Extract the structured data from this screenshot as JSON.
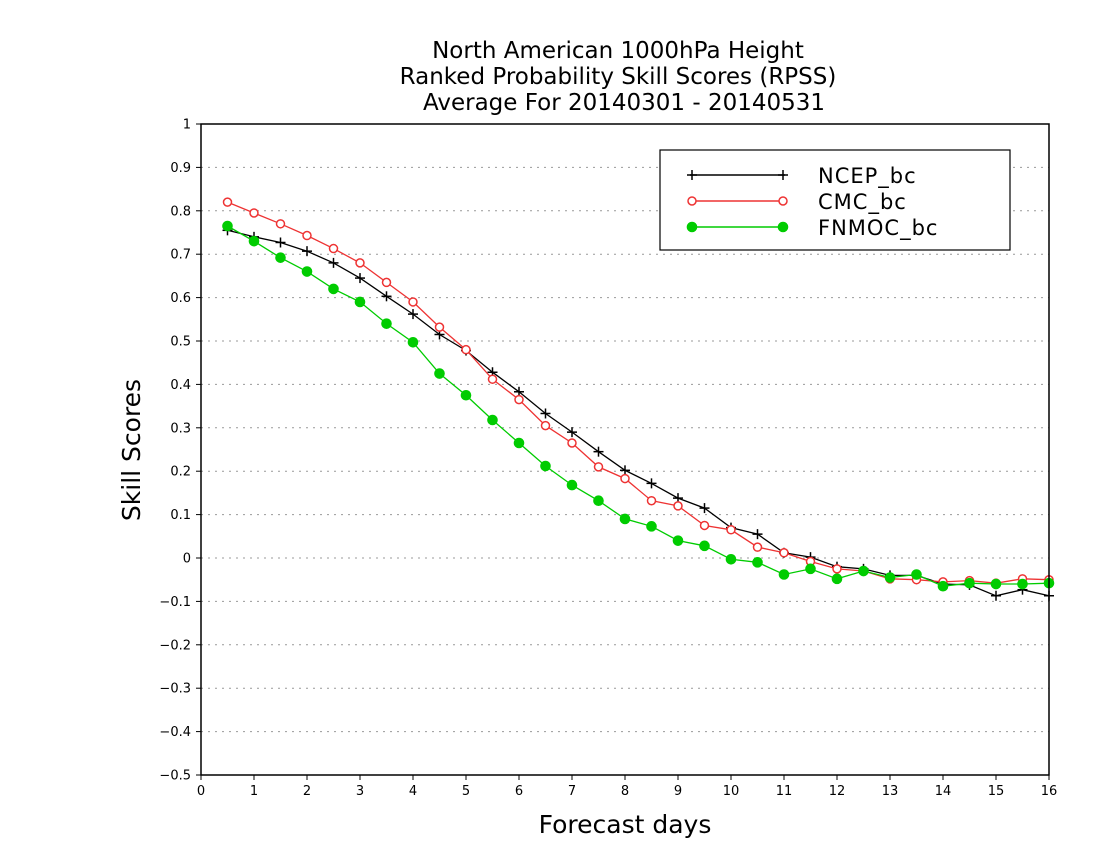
{
  "chart_data": {
    "type": "line",
    "title_lines": [
      "North American 1000hPa Height",
      "Ranked Probability Skill Scores (RPSS)",
      "Average For 20140301 - 20140531"
    ],
    "xlabel": "Forecast days",
    "ylabel": "Skill Scores",
    "xlim": [
      0,
      16
    ],
    "ylim": [
      -0.5,
      1
    ],
    "xticks": [
      "0",
      "1",
      "2",
      "3",
      "4",
      "5",
      "6",
      "7",
      "8",
      "9",
      "10",
      "11",
      "12",
      "13",
      "14",
      "15",
      "16"
    ],
    "yticks": [
      "1",
      "0.9",
      "0.8",
      "0.7",
      "0.6",
      "0.5",
      "0.4",
      "0.3",
      "0.2",
      "0.1",
      "0",
      "−0.1",
      "−0.2",
      "−0.3",
      "−0.4",
      "−0.5"
    ],
    "grid": "horizontal dotted",
    "legend_position": "top-right",
    "x": [
      0.5,
      1,
      1.5,
      2,
      2.5,
      3,
      3.5,
      4,
      4.5,
      5,
      5.5,
      6,
      6.5,
      7,
      7.5,
      8,
      8.5,
      9,
      9.5,
      10,
      10.5,
      11,
      11.5,
      12,
      12.5,
      13,
      13.5,
      14,
      14.5,
      15,
      15.5,
      16
    ],
    "series": [
      {
        "name": "NCEP_bc",
        "color": "#000000",
        "marker": "plus",
        "values": [
          0.755,
          0.74,
          0.727,
          0.707,
          0.68,
          0.645,
          0.603,
          0.562,
          0.515,
          0.478,
          0.428,
          0.383,
          0.333,
          0.29,
          0.245,
          0.202,
          0.172,
          0.138,
          0.115,
          0.07,
          0.055,
          0.012,
          0.002,
          -0.02,
          -0.025,
          -0.04,
          -0.04,
          -0.06,
          -0.062,
          -0.087,
          -0.073,
          -0.087
        ]
      },
      {
        "name": "CMC_bc",
        "color": "#ee3333",
        "marker": "open-circle",
        "values": [
          0.82,
          0.795,
          0.77,
          0.743,
          0.713,
          0.68,
          0.635,
          0.59,
          0.532,
          0.48,
          0.412,
          0.365,
          0.305,
          0.265,
          0.21,
          0.183,
          0.132,
          0.12,
          0.075,
          0.065,
          0.025,
          0.012,
          -0.008,
          -0.025,
          -0.03,
          -0.048,
          -0.05,
          -0.055,
          -0.052,
          -0.058,
          -0.048,
          -0.05
        ]
      },
      {
        "name": "FNMOC_bc",
        "color": "#00cc00",
        "marker": "filled-circle",
        "values": [
          0.765,
          0.73,
          0.692,
          0.66,
          0.62,
          0.59,
          0.54,
          0.497,
          0.425,
          0.375,
          0.318,
          0.265,
          0.212,
          0.168,
          0.132,
          0.09,
          0.073,
          0.04,
          0.028,
          -0.003,
          -0.01,
          -0.038,
          -0.025,
          -0.048,
          -0.03,
          -0.045,
          -0.038,
          -0.065,
          -0.058,
          -0.06,
          -0.06,
          -0.058
        ]
      }
    ]
  }
}
